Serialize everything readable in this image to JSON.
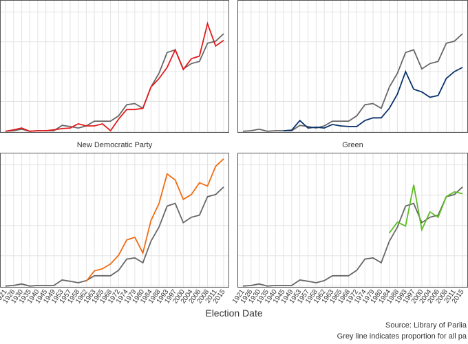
{
  "chart_data": {
    "type": "line",
    "categories": [
      "1921",
      "1926",
      "1930",
      "1935",
      "1940",
      "1945",
      "1949",
      "1953",
      "1957",
      "1958",
      "1962",
      "1963",
      "1965",
      "1968",
      "1972",
      "1974",
      "1979",
      "1980",
      "1984",
      "1988",
      "1993",
      "1997",
      "2000",
      "2004",
      "2006",
      "2008",
      "2011",
      "2015"
    ],
    "ylim": [
      -0.005,
      0.44
    ],
    "yticks": [
      0,
      0.1,
      0.2,
      0.3,
      0.4
    ],
    "grid": true,
    "reference": {
      "color": "#666666",
      "values": [
        0,
        0.002,
        0.007,
        0,
        0.002,
        0.002,
        0.002,
        0.02,
        0.016,
        0.011,
        0.018,
        0.034,
        0.034,
        0.034,
        0.052,
        0.089,
        0.093,
        0.077,
        0.148,
        0.195,
        0.264,
        0.273,
        0.209,
        0.227,
        0.234,
        0.295,
        0.302,
        0.327
      ]
    },
    "panels": [
      {
        "color": "#e31a1c",
        "values": [
          0,
          0.005,
          0.011,
          0,
          0.002,
          0.002,
          0.005,
          0.009,
          0.011,
          0.025,
          0.018,
          0.018,
          0.025,
          0.002,
          0.041,
          0.073,
          0.073,
          0.077,
          0.148,
          0.177,
          0.214,
          0.273,
          0.207,
          0.243,
          0.252,
          0.361,
          0.286,
          0.305
        ]
      },
      {
        "color": "#08306b",
        "values": [
          null,
          null,
          null,
          null,
          null,
          0.002,
          0.004,
          0.036,
          0.011,
          0.014,
          0.011,
          0.023,
          0.018,
          0.016,
          0.016,
          0.036,
          0.045,
          0.045,
          0.077,
          0.125,
          0.2,
          0.141,
          0.132,
          0.114,
          0.12,
          0.177,
          0.2,
          0.214
        ]
      },
      {
        "title": "New Democratic Party",
        "color": "#f26b0f",
        "values": [
          null,
          null,
          null,
          null,
          null,
          null,
          null,
          null,
          null,
          null,
          0.016,
          0.05,
          0.057,
          0.073,
          0.102,
          0.152,
          0.161,
          0.109,
          0.216,
          0.273,
          0.37,
          0.35,
          0.286,
          0.302,
          0.341,
          0.33,
          0.395,
          0.42
        ]
      },
      {
        "title": "Green",
        "color": "#5bbd1f",
        "values": [
          null,
          null,
          null,
          null,
          null,
          null,
          null,
          null,
          null,
          null,
          null,
          null,
          null,
          null,
          null,
          null,
          null,
          null,
          0.175,
          0.211,
          0.198,
          0.334,
          0.186,
          0.245,
          0.227,
          0.295,
          0.311,
          0.305
        ]
      }
    ],
    "xlabel": "Election Date",
    "captions": [
      "Source: Library of Parlia",
      "Grey line indicates proportion for all pa"
    ]
  }
}
